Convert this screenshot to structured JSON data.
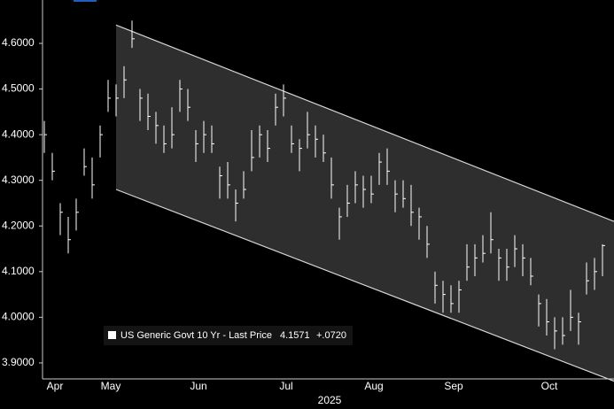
{
  "chart_data": {
    "type": "ohlc",
    "x_label": "2025",
    "categories": [
      null,
      "Apr",
      null,
      null,
      null,
      null,
      null,
      null,
      "May",
      null,
      null,
      null,
      null,
      null,
      null,
      null,
      null,
      null,
      null,
      "Jun",
      null,
      null,
      null,
      null,
      null,
      null,
      null,
      null,
      null,
      null,
      "Jul",
      null,
      null,
      null,
      null,
      null,
      null,
      null,
      null,
      null,
      null,
      "Aug",
      null,
      null,
      null,
      null,
      null,
      null,
      null,
      null,
      null,
      "Sep",
      null,
      null,
      null,
      null,
      null,
      null,
      null,
      null,
      null,
      null,
      null,
      "Oct",
      null,
      null,
      null,
      null,
      null,
      null,
      null
    ],
    "series": [
      {
        "name": "US Generic Govt 10 Yr - Last Price",
        "color": "#ffffff",
        "high": [
          4.43,
          4.36,
          4.25,
          4.22,
          4.26,
          4.37,
          4.35,
          4.42,
          4.52,
          4.51,
          4.55,
          4.65,
          4.5,
          4.49,
          4.45,
          4.42,
          4.46,
          4.52,
          4.5,
          4.41,
          4.43,
          4.42,
          4.33,
          4.34,
          4.28,
          4.32,
          4.41,
          4.42,
          4.41,
          4.49,
          4.51,
          4.42,
          4.39,
          4.45,
          4.42,
          4.4,
          4.35,
          4.24,
          4.29,
          4.32,
          4.31,
          4.31,
          4.36,
          4.37,
          4.3,
          4.3,
          4.29,
          4.24,
          4.2,
          4.1,
          4.08,
          4.07,
          4.08,
          4.16,
          4.16,
          4.18,
          4.23,
          4.15,
          4.15,
          4.18,
          4.16,
          4.13,
          4.05,
          4.04,
          4.0,
          4.0,
          4.06,
          4.01,
          4.12,
          4.13,
          4.16
        ],
        "low": [
          4.36,
          4.3,
          4.18,
          4.14,
          4.19,
          4.31,
          4.26,
          4.35,
          4.45,
          4.44,
          4.48,
          4.59,
          4.43,
          4.41,
          4.38,
          4.36,
          4.37,
          4.45,
          4.43,
          4.34,
          4.36,
          4.36,
          4.26,
          4.26,
          4.21,
          4.26,
          4.32,
          4.35,
          4.34,
          4.42,
          4.44,
          4.36,
          4.32,
          4.37,
          4.35,
          4.34,
          4.26,
          4.17,
          4.22,
          4.25,
          4.24,
          4.25,
          4.29,
          4.29,
          4.23,
          4.24,
          4.2,
          4.17,
          4.13,
          4.03,
          4.01,
          4.01,
          4.01,
          4.08,
          4.09,
          4.12,
          4.14,
          4.08,
          4.08,
          4.11,
          4.09,
          4.07,
          3.98,
          3.96,
          3.93,
          3.94,
          3.97,
          3.94,
          4.05,
          4.06,
          4.09
        ],
        "close": [
          4.4,
          4.32,
          4.23,
          4.17,
          4.23,
          4.33,
          4.29,
          4.4,
          4.48,
          4.48,
          4.52,
          4.61,
          4.48,
          4.44,
          4.42,
          4.38,
          4.4,
          4.5,
          4.46,
          4.38,
          4.4,
          4.38,
          4.31,
          4.29,
          4.25,
          4.28,
          4.35,
          4.4,
          4.37,
          4.46,
          4.48,
          4.38,
          4.37,
          4.4,
          4.39,
          4.36,
          4.29,
          4.22,
          4.25,
          4.29,
          4.28,
          4.27,
          4.34,
          4.32,
          4.27,
          4.26,
          4.23,
          4.22,
          4.16,
          4.07,
          4.05,
          4.03,
          4.06,
          4.11,
          4.13,
          4.14,
          4.17,
          4.13,
          4.11,
          4.15,
          4.13,
          4.09,
          4.03,
          3.99,
          3.97,
          3.96,
          4.0,
          3.99,
          4.08,
          4.1,
          4.1571
        ]
      }
    ],
    "change": "+.0720",
    "channel": {
      "upper": [
        4.64,
        4.21
      ],
      "lower": [
        4.28,
        3.86
      ],
      "color": "#2e2e2e",
      "line_color": "#d8d8d8"
    },
    "ylim": [
      3.865,
      4.695
    ],
    "yticks": [
      {
        "value": 3.9,
        "label": "3.9000"
      },
      {
        "value": 4.0,
        "label": "4.0000"
      },
      {
        "value": 4.1,
        "label": "4.1000"
      },
      {
        "value": 4.2,
        "label": "4.2000"
      },
      {
        "value": 4.3,
        "label": "4.3000"
      },
      {
        "value": 4.4,
        "label": "4.4000"
      },
      {
        "value": 4.5,
        "label": "4.5000"
      },
      {
        "value": 4.6,
        "label": "4.6000"
      }
    ]
  }
}
